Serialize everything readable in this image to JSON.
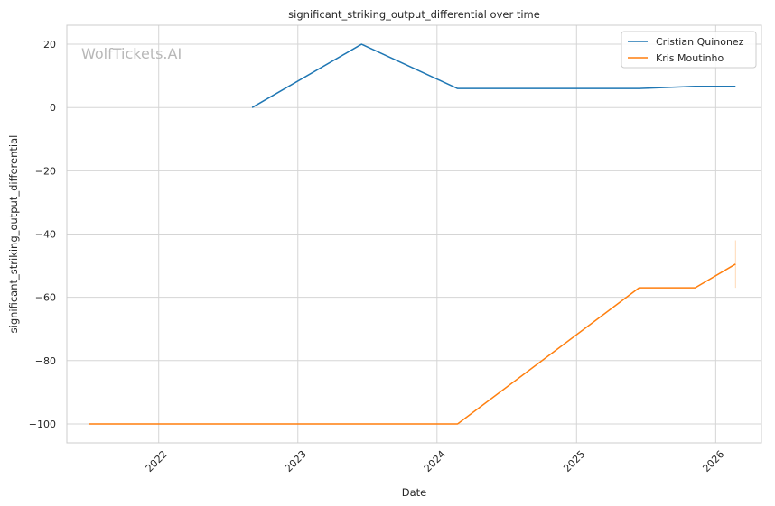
{
  "chart_data": {
    "type": "line",
    "title": "significant_striking_output_differential over time",
    "xlabel": "Date",
    "ylabel": "significant_striking_output_differential",
    "watermark": "WolfTickets.AI",
    "grid": true,
    "legend_position": "top-right",
    "x_ticks": [
      "2022",
      "2023",
      "2024",
      "2025",
      "2026"
    ],
    "y_ticks": [
      20,
      0,
      -20,
      -40,
      -60,
      -80,
      -100
    ],
    "y_tick_labels": [
      "20",
      "0",
      "−20",
      "−40",
      "−60",
      "−80",
      "−100"
    ],
    "xlim": [
      "2021-05-05",
      "2026-05-01"
    ],
    "ylim": [
      -106,
      26
    ],
    "series": [
      {
        "name": "Cristian Quinonez",
        "color": "#1f77b4",
        "points": [
          {
            "x": "2022-09-03",
            "y": 0
          },
          {
            "x": "2023-06-17",
            "y": 20
          },
          {
            "x": "2024-02-24",
            "y": 6
          },
          {
            "x": "2025-06-14",
            "y": 6
          },
          {
            "x": "2025-11-08",
            "y": 6.7
          },
          {
            "x": "2026-02-22",
            "y": 6.7
          }
        ]
      },
      {
        "name": "Kris Moutinho",
        "color": "#ff7f0e",
        "points": [
          {
            "x": "2021-07-03",
            "y": -100
          },
          {
            "x": "2024-02-24",
            "y": -100
          },
          {
            "x": "2025-06-14",
            "y": -57
          },
          {
            "x": "2025-11-08",
            "y": -57
          },
          {
            "x": "2026-02-22",
            "y": -49.5
          }
        ],
        "error_bar": {
          "x": "2026-02-22",
          "low": -57,
          "high": -42
        }
      }
    ]
  }
}
